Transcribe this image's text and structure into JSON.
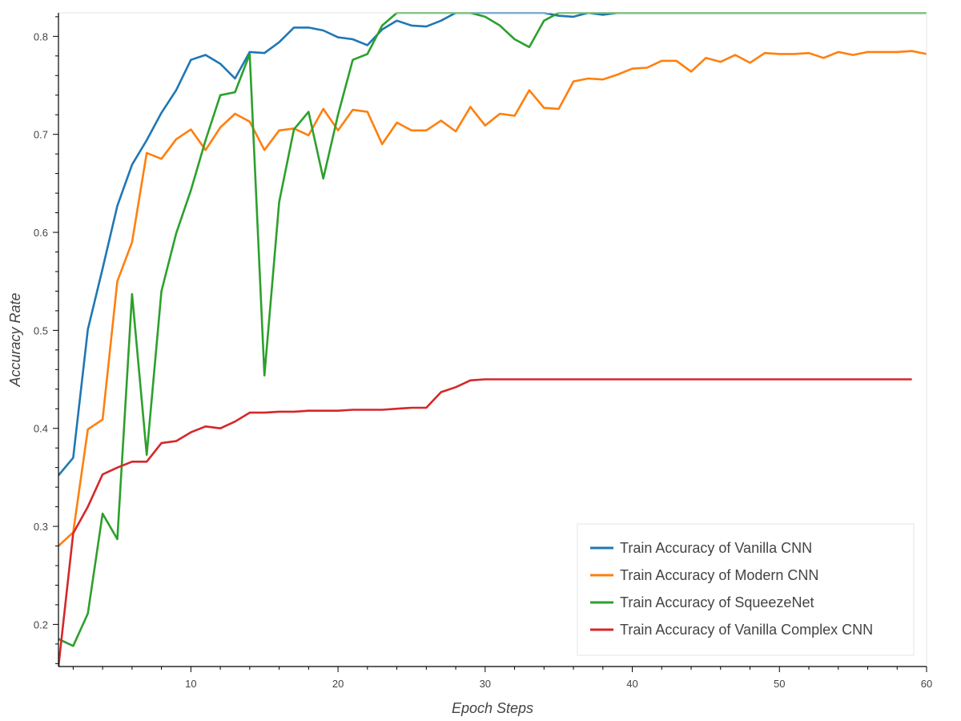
{
  "chart_data": {
    "type": "line",
    "xlabel": "Epoch Steps",
    "ylabel": "Accuracy Rate",
    "xlim": [
      1,
      60
    ],
    "ylim": [
      0.157,
      0.824
    ],
    "xticks": [
      10,
      20,
      30,
      40,
      50,
      60
    ],
    "yticks": [
      0.2,
      0.3,
      0.4,
      0.5,
      0.6,
      0.7,
      0.8
    ],
    "legend_position": "bottom-right",
    "grid": false,
    "series": [
      {
        "name": "Train Accuracy of Vanilla CNN",
        "color": "#1f77b4",
        "x": [
          1,
          2,
          3,
          4,
          5,
          6,
          7,
          8,
          9,
          10,
          11,
          12,
          13,
          14,
          15,
          16,
          17,
          18,
          19,
          20,
          21,
          22,
          23,
          24,
          25,
          26,
          27,
          28,
          29,
          30,
          31,
          32,
          33,
          34,
          35,
          36,
          37,
          38,
          39,
          40,
          41,
          42,
          43,
          44,
          45,
          46,
          47,
          48,
          49,
          50,
          51,
          52,
          53,
          54,
          55,
          56,
          57,
          58,
          59,
          60
        ],
        "y": [
          0.352,
          0.37,
          0.501,
          0.563,
          0.627,
          0.669,
          0.694,
          0.722,
          0.745,
          0.776,
          0.781,
          0.772,
          0.757,
          0.784,
          0.783,
          0.794,
          0.809,
          0.809,
          0.806,
          0.799,
          0.797,
          0.791,
          0.807,
          0.816,
          0.811,
          0.81,
          0.816,
          0.824,
          0.824,
          0.824,
          0.824,
          0.824,
          0.824,
          0.824,
          0.821,
          0.82,
          0.824,
          0.822,
          0.824,
          0.824,
          0.824,
          0.824,
          0.824,
          0.824,
          0.824,
          0.824,
          0.824,
          0.824,
          0.824,
          0.824,
          0.824,
          0.824,
          0.824,
          0.824,
          0.824,
          0.824,
          0.824,
          0.824,
          0.824,
          0.824
        ]
      },
      {
        "name": "Train Accuracy of Modern CNN",
        "color": "#ff7f0e",
        "x": [
          1,
          2,
          3,
          4,
          5,
          6,
          7,
          8,
          9,
          10,
          11,
          12,
          13,
          14,
          15,
          16,
          17,
          18,
          19,
          20,
          21,
          22,
          23,
          24,
          25,
          26,
          27,
          28,
          29,
          30,
          31,
          32,
          33,
          34,
          35,
          36,
          37,
          38,
          39,
          40,
          41,
          42,
          43,
          44,
          45,
          46,
          47,
          48,
          49,
          50,
          51,
          52,
          53,
          54,
          55,
          56,
          57,
          58,
          59,
          60
        ],
        "y": [
          0.28,
          0.294,
          0.399,
          0.409,
          0.55,
          0.59,
          0.681,
          0.675,
          0.695,
          0.705,
          0.684,
          0.707,
          0.721,
          0.713,
          0.684,
          0.704,
          0.706,
          0.699,
          0.726,
          0.704,
          0.725,
          0.723,
          0.69,
          0.712,
          0.704,
          0.704,
          0.714,
          0.703,
          0.728,
          0.709,
          0.721,
          0.719,
          0.745,
          0.727,
          0.726,
          0.754,
          0.757,
          0.756,
          0.761,
          0.767,
          0.768,
          0.775,
          0.775,
          0.764,
          0.778,
          0.774,
          0.781,
          0.773,
          0.783,
          0.782,
          0.782,
          0.783,
          0.778,
          0.784,
          0.781,
          0.784,
          0.784,
          0.784,
          0.785,
          0.782
        ]
      },
      {
        "name": "Train Accuracy of SqueezeNet",
        "color": "#2ca02c",
        "x": [
          1,
          2,
          3,
          4,
          5,
          6,
          7,
          8,
          9,
          10,
          11,
          12,
          13,
          14,
          15,
          16,
          17,
          18,
          19,
          20,
          21,
          22,
          23,
          24,
          25,
          26,
          27,
          28,
          29,
          30,
          31,
          32,
          33,
          34,
          35,
          36,
          37,
          38,
          39,
          40,
          41,
          42,
          43,
          44,
          45,
          46,
          47,
          48,
          49,
          50,
          51,
          52,
          53,
          54,
          55,
          56,
          57,
          58,
          59,
          60
        ],
        "y": [
          0.185,
          0.178,
          0.211,
          0.313,
          0.287,
          0.537,
          0.373,
          0.54,
          0.599,
          0.643,
          0.694,
          0.74,
          0.743,
          0.782,
          0.454,
          0.631,
          0.705,
          0.723,
          0.655,
          0.72,
          0.776,
          0.782,
          0.811,
          0.824,
          0.824,
          0.824,
          0.824,
          0.824,
          0.824,
          0.82,
          0.811,
          0.797,
          0.789,
          0.816,
          0.824,
          0.824,
          0.824,
          0.824,
          0.824,
          0.824,
          0.824,
          0.824,
          0.824,
          0.824,
          0.824,
          0.824,
          0.824,
          0.824,
          0.824,
          0.824,
          0.824,
          0.824,
          0.824,
          0.824,
          0.824,
          0.824,
          0.824,
          0.824,
          0.824,
          0.824
        ]
      },
      {
        "name": "Train Accuracy of Vanilla Complex CNN",
        "color": "#d62728",
        "x": [
          1,
          2,
          3,
          4,
          5,
          6,
          7,
          8,
          9,
          10,
          11,
          12,
          13,
          14,
          15,
          16,
          17,
          18,
          19,
          20,
          21,
          22,
          23,
          24,
          25,
          26,
          27,
          28,
          29,
          30,
          31,
          32,
          33,
          34,
          35,
          36,
          37,
          38,
          39,
          40,
          41,
          42,
          43,
          44,
          45,
          46,
          47,
          48,
          49,
          50,
          51,
          52,
          53,
          54,
          55,
          56,
          57,
          58,
          59
        ],
        "y": [
          0.157,
          0.293,
          0.32,
          0.353,
          0.36,
          0.366,
          0.366,
          0.385,
          0.387,
          0.396,
          0.402,
          0.4,
          0.407,
          0.416,
          0.416,
          0.417,
          0.417,
          0.418,
          0.418,
          0.418,
          0.419,
          0.419,
          0.419,
          0.42,
          0.421,
          0.421,
          0.437,
          0.442,
          0.449,
          0.45,
          0.45,
          0.45,
          0.45,
          0.45,
          0.45,
          0.45,
          0.45,
          0.45,
          0.45,
          0.45,
          0.45,
          0.45,
          0.45,
          0.45,
          0.45,
          0.45,
          0.45,
          0.45,
          0.45,
          0.45,
          0.45,
          0.45,
          0.45,
          0.45,
          0.45,
          0.45,
          0.45,
          0.45,
          0.45
        ]
      }
    ]
  }
}
